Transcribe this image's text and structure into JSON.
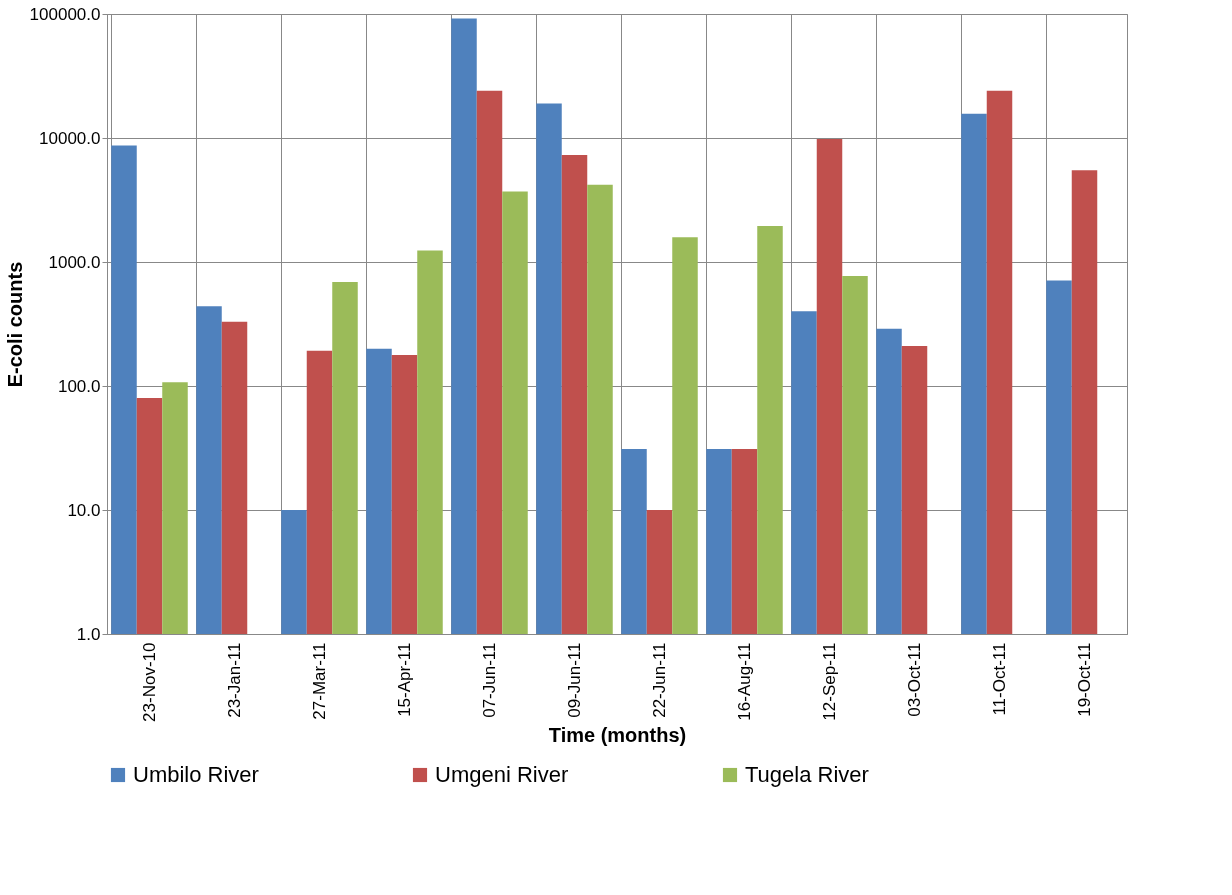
{
  "chart_data": {
    "type": "bar",
    "xlabel": "Time (months)",
    "ylabel": "E-coli counts",
    "categories": [
      "23-Nov-10",
      "23-Jan-11",
      "27-Mar-11",
      "15-Apr-11",
      "07-Jun-11",
      "09-Jun-11",
      "22-Jun-11",
      "16-Aug-11",
      "12-Sep-11",
      "03-Oct-11",
      "11-Oct-11",
      "19-Oct-11"
    ],
    "series": [
      {
        "name": "Umbilo River",
        "color": "#4f81bd",
        "values": [
          8700,
          440,
          10,
          200,
          92000,
          19000,
          31,
          31,
          400,
          290,
          15700,
          710
        ]
      },
      {
        "name": "Umgeni River",
        "color": "#c0504d",
        "values": [
          80,
          330,
          192,
          178,
          24000,
          7300,
          10,
          31,
          9800,
          210,
          24000,
          5500
        ]
      },
      {
        "name": "Tugela River",
        "color": "#9bbb59",
        "values": [
          107,
          null,
          690,
          1240,
          3700,
          4200,
          1580,
          1950,
          770,
          null,
          null,
          null
        ]
      }
    ],
    "log": "y",
    "ylim": [
      1,
      100000
    ],
    "yticks": [
      {
        "value": 1,
        "label": "1.0"
      },
      {
        "value": 10,
        "label": "10.0"
      },
      {
        "value": 100,
        "label": "100.0"
      },
      {
        "value": 1000,
        "label": "1000.0"
      },
      {
        "value": 10000,
        "label": "10000.0"
      },
      {
        "value": 100000,
        "label": "100000.0"
      }
    ],
    "grid": true,
    "legend": "bottom"
  }
}
